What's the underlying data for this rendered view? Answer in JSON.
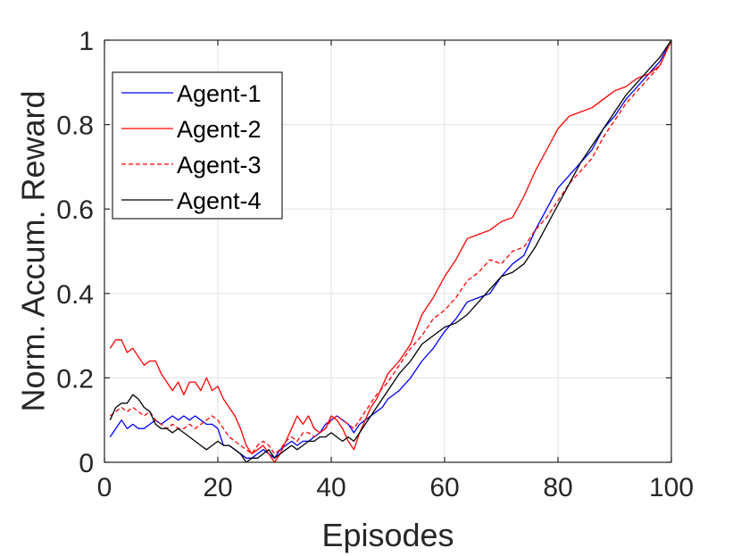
{
  "chart_data": {
    "type": "line",
    "title": "",
    "xlabel": "Episodes",
    "ylabel": "Norm. Accum. Reward",
    "xlim": [
      0,
      100
    ],
    "ylim": [
      0,
      1
    ],
    "xticks": [
      "0",
      "20",
      "40",
      "60",
      "80",
      "100"
    ],
    "yticks": [
      "0",
      "0.2",
      "0.4",
      "0.6",
      "0.8",
      "1"
    ],
    "grid": true,
    "legend_position": "top-left",
    "series": [
      {
        "name": "Agent-1",
        "color": "#0000ff",
        "dash": "solid",
        "points": [
          [
            1,
            0.06
          ],
          [
            2,
            0.08
          ],
          [
            3,
            0.1
          ],
          [
            4,
            0.08
          ],
          [
            5,
            0.09
          ],
          [
            6,
            0.08
          ],
          [
            7,
            0.08
          ],
          [
            8,
            0.09
          ],
          [
            9,
            0.1
          ],
          [
            10,
            0.09
          ],
          [
            11,
            0.1
          ],
          [
            12,
            0.11
          ],
          [
            13,
            0.1
          ],
          [
            14,
            0.11
          ],
          [
            15,
            0.1
          ],
          [
            16,
            0.11
          ],
          [
            17,
            0.1
          ],
          [
            18,
            0.09
          ],
          [
            19,
            0.09
          ],
          [
            20,
            0.08
          ],
          [
            21,
            0.04
          ],
          [
            22,
            0.04
          ],
          [
            23,
            0.03
          ],
          [
            24,
            0.02
          ],
          [
            25,
            0.01
          ],
          [
            26,
            0.01
          ],
          [
            27,
            0.02
          ],
          [
            28,
            0.03
          ],
          [
            29,
            0.02
          ],
          [
            30,
            0.01
          ],
          [
            31,
            0.03
          ],
          [
            32,
            0.04
          ],
          [
            33,
            0.05
          ],
          [
            34,
            0.04
          ],
          [
            35,
            0.05
          ],
          [
            36,
            0.05
          ],
          [
            37,
            0.06
          ],
          [
            38,
            0.07
          ],
          [
            39,
            0.09
          ],
          [
            40,
            0.1
          ],
          [
            41,
            0.11
          ],
          [
            42,
            0.1
          ],
          [
            43,
            0.09
          ],
          [
            44,
            0.07
          ],
          [
            45,
            0.09
          ],
          [
            46,
            0.1
          ],
          [
            47,
            0.11
          ],
          [
            48,
            0.12
          ],
          [
            49,
            0.13
          ],
          [
            50,
            0.15
          ],
          [
            52,
            0.17
          ],
          [
            54,
            0.2
          ],
          [
            56,
            0.24
          ],
          [
            58,
            0.27
          ],
          [
            60,
            0.31
          ],
          [
            62,
            0.34
          ],
          [
            64,
            0.38
          ],
          [
            66,
            0.39
          ],
          [
            68,
            0.4
          ],
          [
            70,
            0.44
          ],
          [
            72,
            0.47
          ],
          [
            74,
            0.49
          ],
          [
            76,
            0.55
          ],
          [
            78,
            0.6
          ],
          [
            80,
            0.65
          ],
          [
            82,
            0.68
          ],
          [
            84,
            0.71
          ],
          [
            86,
            0.74
          ],
          [
            88,
            0.79
          ],
          [
            90,
            0.82
          ],
          [
            92,
            0.86
          ],
          [
            94,
            0.89
          ],
          [
            96,
            0.92
          ],
          [
            98,
            0.95
          ],
          [
            100,
            1.0
          ]
        ]
      },
      {
        "name": "Agent-2",
        "color": "#ff0000",
        "dash": "solid",
        "points": [
          [
            1,
            0.27
          ],
          [
            2,
            0.29
          ],
          [
            3,
            0.29
          ],
          [
            4,
            0.26
          ],
          [
            5,
            0.27
          ],
          [
            6,
            0.25
          ],
          [
            7,
            0.23
          ],
          [
            8,
            0.24
          ],
          [
            9,
            0.24
          ],
          [
            10,
            0.21
          ],
          [
            11,
            0.19
          ],
          [
            12,
            0.17
          ],
          [
            13,
            0.19
          ],
          [
            14,
            0.16
          ],
          [
            15,
            0.19
          ],
          [
            16,
            0.19
          ],
          [
            17,
            0.17
          ],
          [
            18,
            0.2
          ],
          [
            19,
            0.17
          ],
          [
            20,
            0.18
          ],
          [
            21,
            0.15
          ],
          [
            22,
            0.13
          ],
          [
            23,
            0.11
          ],
          [
            24,
            0.08
          ],
          [
            25,
            0.04
          ],
          [
            26,
            0.02
          ],
          [
            27,
            0.03
          ],
          [
            28,
            0.04
          ],
          [
            29,
            0.02
          ],
          [
            30,
            0.0
          ],
          [
            31,
            0.02
          ],
          [
            32,
            0.05
          ],
          [
            33,
            0.08
          ],
          [
            34,
            0.11
          ],
          [
            35,
            0.09
          ],
          [
            36,
            0.11
          ],
          [
            37,
            0.08
          ],
          [
            38,
            0.07
          ],
          [
            39,
            0.08
          ],
          [
            40,
            0.11
          ],
          [
            41,
            0.1
          ],
          [
            42,
            0.08
          ],
          [
            43,
            0.05
          ],
          [
            44,
            0.03
          ],
          [
            45,
            0.07
          ],
          [
            46,
            0.1
          ],
          [
            47,
            0.13
          ],
          [
            48,
            0.15
          ],
          [
            50,
            0.21
          ],
          [
            52,
            0.24
          ],
          [
            54,
            0.28
          ],
          [
            56,
            0.35
          ],
          [
            58,
            0.39
          ],
          [
            60,
            0.44
          ],
          [
            62,
            0.48
          ],
          [
            64,
            0.53
          ],
          [
            66,
            0.54
          ],
          [
            68,
            0.55
          ],
          [
            70,
            0.57
          ],
          [
            72,
            0.58
          ],
          [
            74,
            0.63
          ],
          [
            76,
            0.69
          ],
          [
            78,
            0.74
          ],
          [
            80,
            0.79
          ],
          [
            82,
            0.82
          ],
          [
            84,
            0.83
          ],
          [
            86,
            0.84
          ],
          [
            88,
            0.86
          ],
          [
            90,
            0.88
          ],
          [
            92,
            0.89
          ],
          [
            94,
            0.91
          ],
          [
            96,
            0.92
          ],
          [
            98,
            0.94
          ],
          [
            100,
            1.0
          ]
        ]
      },
      {
        "name": "Agent-3",
        "color": "#ff0000",
        "dash": "dashed",
        "points": [
          [
            1,
            0.11
          ],
          [
            2,
            0.12
          ],
          [
            3,
            0.13
          ],
          [
            4,
            0.12
          ],
          [
            5,
            0.13
          ],
          [
            6,
            0.12
          ],
          [
            7,
            0.11
          ],
          [
            8,
            0.12
          ],
          [
            9,
            0.1
          ],
          [
            10,
            0.09
          ],
          [
            11,
            0.08
          ],
          [
            12,
            0.09
          ],
          [
            13,
            0.08
          ],
          [
            14,
            0.08
          ],
          [
            15,
            0.09
          ],
          [
            16,
            0.08
          ],
          [
            17,
            0.09
          ],
          [
            18,
            0.1
          ],
          [
            19,
            0.11
          ],
          [
            20,
            0.1
          ],
          [
            21,
            0.08
          ],
          [
            22,
            0.06
          ],
          [
            23,
            0.05
          ],
          [
            24,
            0.04
          ],
          [
            25,
            0.03
          ],
          [
            26,
            0.02
          ],
          [
            27,
            0.04
          ],
          [
            28,
            0.05
          ],
          [
            29,
            0.04
          ],
          [
            30,
            0.02
          ],
          [
            31,
            0.03
          ],
          [
            32,
            0.05
          ],
          [
            33,
            0.06
          ],
          [
            34,
            0.05
          ],
          [
            35,
            0.07
          ],
          [
            36,
            0.07
          ],
          [
            37,
            0.06
          ],
          [
            38,
            0.07
          ],
          [
            39,
            0.08
          ],
          [
            40,
            0.1
          ],
          [
            41,
            0.11
          ],
          [
            42,
            0.1
          ],
          [
            43,
            0.09
          ],
          [
            44,
            0.08
          ],
          [
            45,
            0.1
          ],
          [
            46,
            0.12
          ],
          [
            47,
            0.14
          ],
          [
            48,
            0.16
          ],
          [
            50,
            0.19
          ],
          [
            52,
            0.23
          ],
          [
            54,
            0.27
          ],
          [
            56,
            0.3
          ],
          [
            58,
            0.34
          ],
          [
            60,
            0.36
          ],
          [
            62,
            0.39
          ],
          [
            64,
            0.43
          ],
          [
            66,
            0.45
          ],
          [
            68,
            0.48
          ],
          [
            70,
            0.47
          ],
          [
            72,
            0.5
          ],
          [
            74,
            0.51
          ],
          [
            76,
            0.55
          ],
          [
            78,
            0.58
          ],
          [
            80,
            0.62
          ],
          [
            82,
            0.66
          ],
          [
            84,
            0.69
          ],
          [
            86,
            0.72
          ],
          [
            88,
            0.77
          ],
          [
            90,
            0.81
          ],
          [
            92,
            0.85
          ],
          [
            94,
            0.88
          ],
          [
            96,
            0.91
          ],
          [
            98,
            0.94
          ],
          [
            100,
            1.0
          ]
        ]
      },
      {
        "name": "Agent-4",
        "color": "#000000",
        "dash": "solid",
        "points": [
          [
            1,
            0.1
          ],
          [
            2,
            0.13
          ],
          [
            3,
            0.14
          ],
          [
            4,
            0.14
          ],
          [
            5,
            0.16
          ],
          [
            6,
            0.15
          ],
          [
            7,
            0.13
          ],
          [
            8,
            0.12
          ],
          [
            9,
            0.09
          ],
          [
            10,
            0.08
          ],
          [
            11,
            0.08
          ],
          [
            12,
            0.07
          ],
          [
            13,
            0.08
          ],
          [
            14,
            0.07
          ],
          [
            15,
            0.06
          ],
          [
            16,
            0.05
          ],
          [
            17,
            0.04
          ],
          [
            18,
            0.03
          ],
          [
            19,
            0.04
          ],
          [
            20,
            0.05
          ],
          [
            21,
            0.04
          ],
          [
            22,
            0.04
          ],
          [
            23,
            0.03
          ],
          [
            24,
            0.02
          ],
          [
            25,
            0.0
          ],
          [
            26,
            0.01
          ],
          [
            27,
            0.01
          ],
          [
            28,
            0.02
          ],
          [
            29,
            0.03
          ],
          [
            30,
            0.01
          ],
          [
            31,
            0.02
          ],
          [
            32,
            0.03
          ],
          [
            33,
            0.04
          ],
          [
            34,
            0.03
          ],
          [
            35,
            0.04
          ],
          [
            36,
            0.05
          ],
          [
            37,
            0.05
          ],
          [
            38,
            0.06
          ],
          [
            39,
            0.06
          ],
          [
            40,
            0.07
          ],
          [
            41,
            0.06
          ],
          [
            42,
            0.05
          ],
          [
            43,
            0.06
          ],
          [
            44,
            0.05
          ],
          [
            45,
            0.07
          ],
          [
            46,
            0.09
          ],
          [
            47,
            0.11
          ],
          [
            48,
            0.13
          ],
          [
            50,
            0.17
          ],
          [
            52,
            0.21
          ],
          [
            54,
            0.24
          ],
          [
            56,
            0.28
          ],
          [
            58,
            0.3
          ],
          [
            60,
            0.32
          ],
          [
            62,
            0.33
          ],
          [
            64,
            0.35
          ],
          [
            66,
            0.38
          ],
          [
            68,
            0.41
          ],
          [
            70,
            0.44
          ],
          [
            72,
            0.45
          ],
          [
            74,
            0.47
          ],
          [
            76,
            0.51
          ],
          [
            78,
            0.56
          ],
          [
            80,
            0.61
          ],
          [
            82,
            0.66
          ],
          [
            84,
            0.71
          ],
          [
            86,
            0.75
          ],
          [
            88,
            0.79
          ],
          [
            90,
            0.83
          ],
          [
            92,
            0.87
          ],
          [
            94,
            0.9
          ],
          [
            96,
            0.93
          ],
          [
            98,
            0.96
          ],
          [
            100,
            1.0
          ]
        ]
      }
    ]
  }
}
